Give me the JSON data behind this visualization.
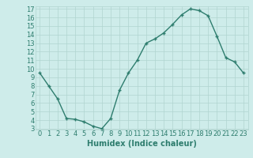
{
  "x": [
    0,
    1,
    2,
    3,
    4,
    5,
    6,
    7,
    8,
    9,
    10,
    11,
    12,
    13,
    14,
    15,
    16,
    17,
    18,
    19,
    20,
    21,
    22,
    23
  ],
  "y": [
    9.5,
    8.0,
    6.5,
    4.2,
    4.1,
    3.8,
    3.3,
    3.0,
    4.2,
    7.5,
    9.5,
    11.0,
    13.0,
    13.5,
    14.2,
    15.2,
    16.3,
    17.0,
    16.8,
    16.2,
    13.8,
    11.3,
    10.8,
    9.5
  ],
  "xlabel": "Humidex (Indice chaleur)",
  "line_color": "#2e7d6e",
  "marker_color": "#2e7d6e",
  "bg_color": "#ceecea",
  "grid_color": "#b0d4d0",
  "tick_label_color": "#2e7d6e",
  "xlabel_color": "#2e7d6e",
  "ylim": [
    3,
    17
  ],
  "xlim": [
    -0.5,
    23.5
  ],
  "yticks": [
    3,
    4,
    5,
    6,
    7,
    8,
    9,
    10,
    11,
    12,
    13,
    14,
    15,
    16,
    17
  ],
  "xticks": [
    0,
    1,
    2,
    3,
    4,
    5,
    6,
    7,
    8,
    9,
    10,
    11,
    12,
    13,
    14,
    15,
    16,
    17,
    18,
    19,
    20,
    21,
    22,
    23
  ],
  "fontsize": 6,
  "xlabel_fontsize": 7
}
